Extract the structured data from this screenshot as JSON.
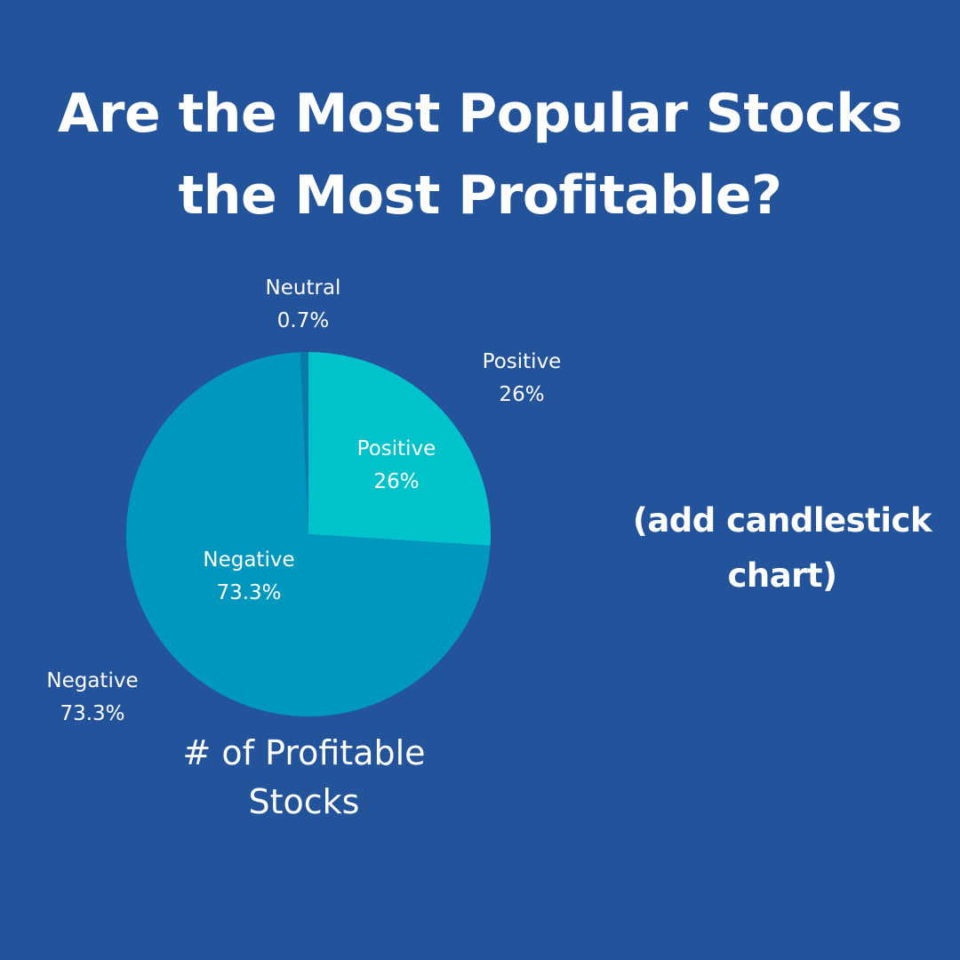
{
  "page": {
    "background": "#23539a",
    "title_lines": [
      "Are the Most Popular Stocks",
      "the Most Profitable?"
    ],
    "note_lines": [
      "(add candlestick",
      "chart)"
    ]
  },
  "chart_data": {
    "type": "pie",
    "title": "",
    "caption_lines": [
      "# of Profitable",
      "Stocks"
    ],
    "slices": [
      {
        "label": "Positive",
        "value": 26,
        "value_label": "26%",
        "color": "#00c2cb"
      },
      {
        "label": "Negative",
        "value": 73.3,
        "value_label": "73.3%",
        "color": "#0097be"
      },
      {
        "label": "Neutral",
        "value": 0.7,
        "value_label": "0.7%",
        "color": "#0a7aa8"
      }
    ]
  }
}
